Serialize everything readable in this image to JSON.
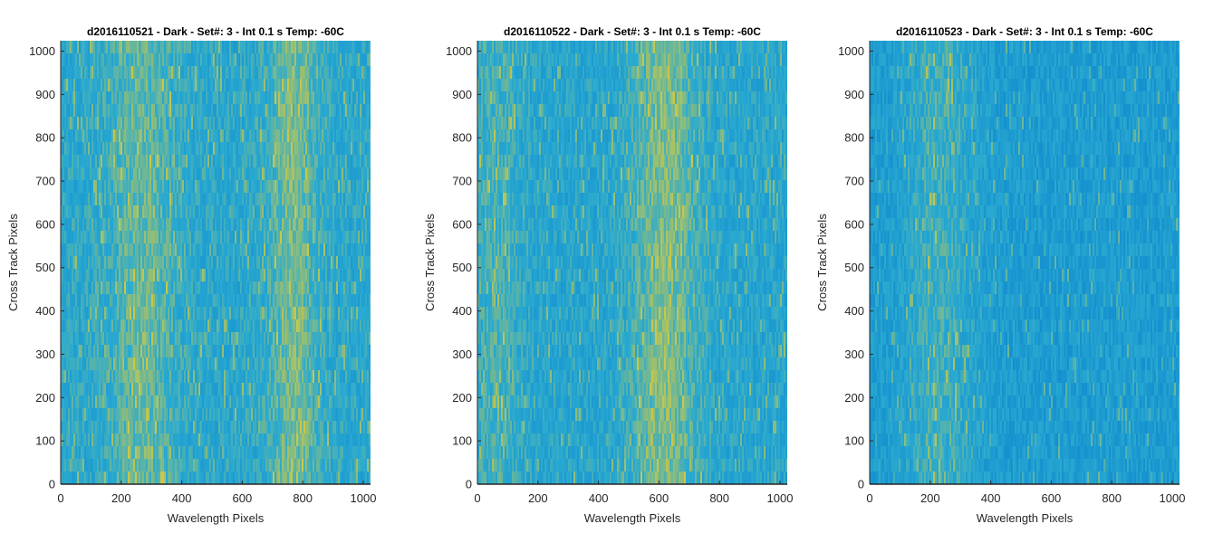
{
  "chart_data": [
    {
      "type": "heatmap",
      "title": "d2016110521 - Dark - Set#: 3 - Int 0.1 s Temp: -60C",
      "xlabel": "Wavelength Pixels",
      "ylabel": "Cross Track Pixels",
      "xlim": [
        0,
        1024
      ],
      "ylim": [
        0,
        1024
      ],
      "xticks": [
        0,
        200,
        400,
        600,
        800,
        1000
      ],
      "yticks": [
        0,
        100,
        200,
        300,
        400,
        500,
        600,
        700,
        800,
        900,
        1000
      ],
      "bright_bands": [
        {
          "center": 270,
          "width": 110,
          "intensity": 0.7
        },
        {
          "center": 770,
          "width": 80,
          "intensity": 0.85
        }
      ],
      "base_level": 0.45
    },
    {
      "type": "heatmap",
      "title": "d2016110522 - Dark - Set#: 3 - Int 0.1 s Temp: -60C",
      "xlabel": "Wavelength Pixels",
      "ylabel": "Cross Track Pixels",
      "xlim": [
        0,
        1024
      ],
      "ylim": [
        0,
        1024
      ],
      "xticks": [
        0,
        200,
        400,
        600,
        800,
        1000
      ],
      "yticks": [
        0,
        100,
        200,
        300,
        400,
        500,
        600,
        700,
        800,
        900,
        1000
      ],
      "bright_bands": [
        {
          "center": 620,
          "width": 110,
          "intensity": 1.0
        },
        {
          "center": 60,
          "width": 90,
          "intensity": 0.45
        }
      ],
      "base_level": 0.42
    },
    {
      "type": "heatmap",
      "title": "d2016110523 - Dark - Set#: 3 - Int 0.1 s Temp: -60C",
      "xlabel": "Wavelength Pixels",
      "ylabel": "Cross Track Pixels",
      "xlim": [
        0,
        1024
      ],
      "ylim": [
        0,
        1024
      ],
      "xticks": [
        0,
        200,
        400,
        600,
        800,
        1000
      ],
      "yticks": [
        0,
        100,
        200,
        300,
        400,
        500,
        600,
        700,
        800,
        900,
        1000
      ],
      "bright_bands": [
        {
          "center": 230,
          "width": 120,
          "intensity": 0.75
        }
      ],
      "base_level": 0.3
    }
  ],
  "colors": {
    "low": "#0d87cf",
    "mid": "#2aaad0",
    "high": "#c8c84a",
    "axis": "#262626"
  }
}
